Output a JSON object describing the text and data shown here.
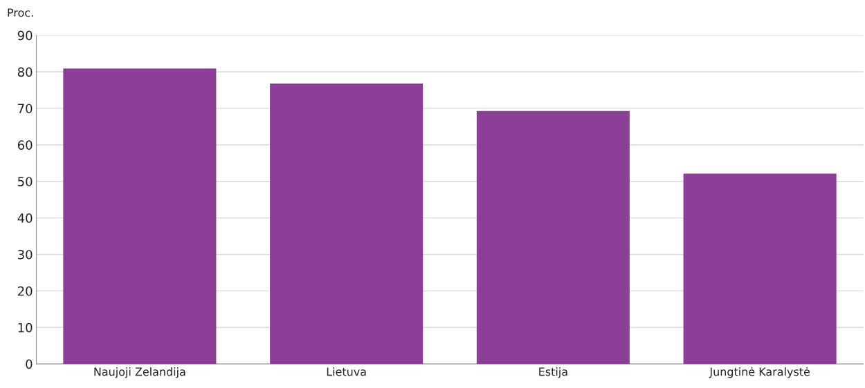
{
  "chart_data": {
    "type": "bar",
    "ylabel": "Proc.",
    "categories": [
      "Naujoji Zelandija",
      "Lietuva",
      "Estija",
      "Jungtinė Karalystė"
    ],
    "values": [
      80.9,
      76.8,
      69.3,
      52.1
    ],
    "color": "#8b3f96",
    "ylim": [
      0,
      90
    ],
    "yticks": [
      0,
      10,
      20,
      30,
      40,
      50,
      60,
      70,
      80,
      90
    ],
    "grid": "y",
    "legend": false
  }
}
